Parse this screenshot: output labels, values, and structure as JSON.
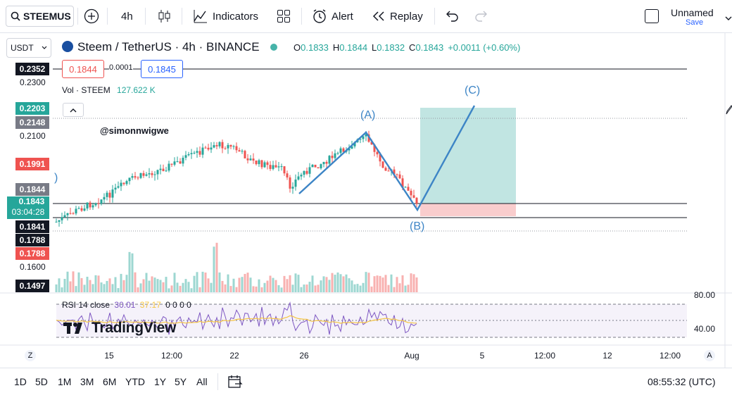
{
  "toolbar": {
    "symbol": "STEEMUS",
    "interval": "4h",
    "indicators_label": "Indicators",
    "alert_label": "Alert",
    "replay_label": "Replay",
    "layout_name": "Unnamed",
    "save_label": "Save"
  },
  "legend": {
    "currency_select": "USDT",
    "pair_title": "Steem / TetherUS · 4h · BINANCE",
    "o_label": "O",
    "o_value": "0.1833",
    "h_label": "H",
    "h_value": "0.1844",
    "l_label": "L",
    "l_value": "0.1832",
    "c_label": "C",
    "c_value": "0.1843",
    "change": "+0.0011 (+0.60%)",
    "sell_price": "0.1844",
    "spread": "0.0001",
    "buy_price": "0.1845",
    "volume_label": "Vol · STEEM",
    "volume_value": "127.622 K",
    "watermark_user": "@simonnwigwe",
    "rsi_label": "RSI 14 close",
    "rsi_value": "30.01",
    "rsi_ma_value": "37.17",
    "rsi_extra": "0 0 0 0",
    "brand": "TradingView"
  },
  "price_labels": {
    "l2352": "0.2352",
    "l2300": "0.2300",
    "l2203": "0.2203",
    "l2148": "0.2148",
    "l2100": "0.2100",
    "l1991": "0.1991",
    "l1844": "0.1844",
    "l1843": "0.1843",
    "countdown": "03:04:28",
    "l1841": "0.1841",
    "l1788a": "0.1788",
    "l1788b": "0.1788",
    "l1600": "0.1600",
    "l1497": "0.1497",
    "rsi80": "80.00",
    "rsi40": "40.00"
  },
  "wave_labels": {
    "a": "(A)",
    "b": "(B)",
    "c": "(C)"
  },
  "time_axis": [
    "15",
    "12:00",
    "22",
    "26",
    "Aug",
    "5",
    "12:00",
    "12",
    "12:00"
  ],
  "bottom": {
    "ranges": [
      "1D",
      "5D",
      "1M",
      "3M",
      "6M",
      "YTD",
      "1Y",
      "5Y",
      "All"
    ],
    "clock": "08:55:32 (UTC)",
    "z_label": "Z",
    "a_label": "A"
  },
  "colors": {
    "up": "#26a69a",
    "down": "#ef5350",
    "wave": "#3d85c6",
    "target_zone": "#b2dfdb",
    "stop_zone": "#f8c8c8",
    "rsi_line": "#7e57c2",
    "rsi_ma": "#f5c542"
  }
}
